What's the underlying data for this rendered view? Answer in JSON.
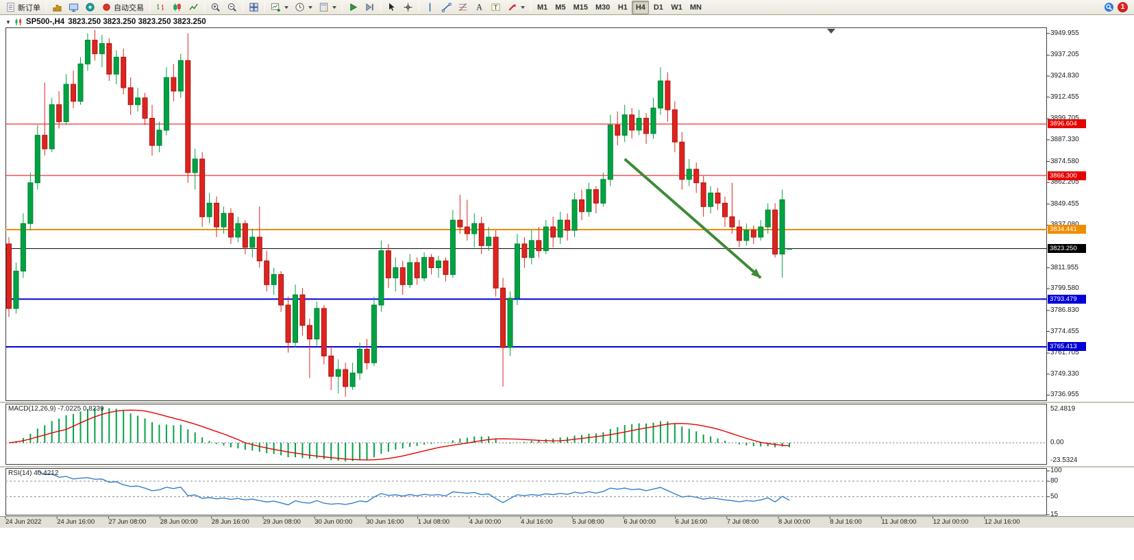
{
  "toolbar": {
    "new_order_label": "新订单",
    "autotrading_label": "自动交易",
    "timeframes": [
      "M1",
      "M5",
      "M15",
      "M30",
      "H1",
      "H4",
      "D1",
      "W1",
      "MN"
    ],
    "active_timeframe": "H4",
    "notification_count": "1",
    "icon_glyphs": {
      "text_tool": "A",
      "label_tool": "T"
    },
    "icons": [
      "new-order-icon",
      "charts-grid-icon",
      "market-watch-icon",
      "data-window-icon",
      "autotrading-icon",
      "bar-chart-icon",
      "candlestick-chart-icon",
      "line-chart-icon",
      "zoom-in-icon",
      "zoom-out-icon",
      "tile-windows-icon",
      "new-chart-icon",
      "chart-period-icon",
      "template-icon",
      "auto-scroll-icon",
      "chart-shift-icon",
      "cursor-icon",
      "crosshair-icon",
      "vertical-line-icon",
      "trendline-icon",
      "fibonacci-icon",
      "text-label-icon",
      "text-box-icon",
      "arrows-icon",
      "community-search-icon",
      "notification-badge"
    ]
  },
  "chart": {
    "title_symbol": "SP500-,H4",
    "title_ohlc": "3823.250 3823.250 3823.250 3823.250"
  },
  "chart_data": {
    "type": "candlestick",
    "symbol": "SP500-",
    "timeframe": "H4",
    "current_bar": {
      "open": 3823.25,
      "high": 3823.25,
      "low": 3823.25,
      "close": 3823.25
    },
    "y_range": [
      3733.5,
      3953.5
    ],
    "price_axis_labels": [
      "3949.955",
      "3937.205",
      "3924.830",
      "3912.455",
      "3899.705",
      "3887.330",
      "3874.580",
      "3862.205",
      "3849.455",
      "3837.080",
      "3811.955",
      "3799.580",
      "3786.830",
      "3774.455",
      "3761.705",
      "3749.330",
      "3736.955"
    ],
    "hlines": [
      {
        "price": 3896.604,
        "label": "3896.604",
        "color": "#e60000",
        "width": 1
      },
      {
        "price": 3866.3,
        "label": "3866.300",
        "color": "#e60000",
        "width": 1
      },
      {
        "price": 3834.441,
        "label": "3834.441",
        "color": "#f08c00",
        "width": 2
      },
      {
        "price": 3823.25,
        "label": "3823.250",
        "color": "#000000",
        "width": 1,
        "role": "bid"
      },
      {
        "price": 3793.479,
        "label": "3793.479",
        "color": "#0000d6",
        "width": 2
      },
      {
        "price": 3765.413,
        "label": "3765.413",
        "color": "#0000d6",
        "width": 2
      }
    ],
    "trend_arrow": {
      "from": {
        "bar": 86,
        "price": 3876
      },
      "to": {
        "bar": 105,
        "price": 3806
      },
      "color": "#3d8b37"
    },
    "time_axis_labels": [
      "24 Jun 2022",
      "24 Jun 16:00",
      "27 Jun 08:00",
      "28 Jun 00:00",
      "28 Jun 16:00",
      "29 Jun 08:00",
      "30 Jun 00:00",
      "30 Jun 16:00",
      "1 Jul 08:00",
      "4 Jul 00:00",
      "4 Jul 16:00",
      "5 Jul 08:00",
      "6 Jul 00:00",
      "6 Jul 16:00",
      "7 Jul 08:00",
      "8 Jul 00:00",
      "8 Jul 16:00",
      "11 Jul 08:00",
      "12 Jul 00:00",
      "12 Jul 16:00"
    ],
    "candles": [
      [
        3826,
        3830,
        3783,
        3788
      ],
      [
        3788,
        3815,
        3785,
        3810
      ],
      [
        3810,
        3844,
        3806,
        3838
      ],
      [
        3838,
        3868,
        3834,
        3862
      ],
      [
        3862,
        3896,
        3858,
        3890
      ],
      [
        3890,
        3921,
        3878,
        3882
      ],
      [
        3882,
        3912,
        3880,
        3908
      ],
      [
        3908,
        3916,
        3894,
        3898
      ],
      [
        3898,
        3926,
        3896,
        3920
      ],
      [
        3920,
        3928,
        3906,
        3910
      ],
      [
        3910,
        3936,
        3908,
        3932
      ],
      [
        3932,
        3950,
        3928,
        3946
      ],
      [
        3946,
        3952,
        3934,
        3938
      ],
      [
        3938,
        3949,
        3930,
        3944
      ],
      [
        3944,
        3947,
        3922,
        3926
      ],
      [
        3926,
        3940,
        3920,
        3936
      ],
      [
        3936,
        3941,
        3914,
        3918
      ],
      [
        3918,
        3924,
        3902,
        3908
      ],
      [
        3908,
        3918,
        3904,
        3912
      ],
      [
        3912,
        3915,
        3896,
        3900
      ],
      [
        3900,
        3908,
        3878,
        3884
      ],
      [
        3884,
        3898,
        3880,
        3893
      ],
      [
        3893,
        3930,
        3890,
        3924
      ],
      [
        3924,
        3932,
        3910,
        3916
      ],
      [
        3916,
        3938,
        3912,
        3934
      ],
      [
        3934,
        3950,
        3862,
        3868
      ],
      [
        3868,
        3882,
        3858,
        3876
      ],
      [
        3876,
        3880,
        3836,
        3842
      ],
      [
        3842,
        3856,
        3838,
        3850
      ],
      [
        3850,
        3854,
        3830,
        3836
      ],
      [
        3836,
        3848,
        3832,
        3844
      ],
      [
        3844,
        3847,
        3826,
        3830
      ],
      [
        3830,
        3842,
        3827,
        3838
      ],
      [
        3838,
        3840,
        3820,
        3824
      ],
      [
        3824,
        3835,
        3818,
        3830
      ],
      [
        3830,
        3848,
        3812,
        3816
      ],
      [
        3816,
        3822,
        3798,
        3802
      ],
      [
        3802,
        3812,
        3796,
        3808
      ],
      [
        3808,
        3810,
        3786,
        3790
      ],
      [
        3790,
        3795,
        3762,
        3768
      ],
      [
        3768,
        3802,
        3765,
        3796
      ],
      [
        3796,
        3800,
        3772,
        3778
      ],
      [
        3778,
        3782,
        3747,
        3770
      ],
      [
        3770,
        3792,
        3766,
        3788
      ],
      [
        3788,
        3790,
        3755,
        3760
      ],
      [
        3760,
        3766,
        3740,
        3748
      ],
      [
        3748,
        3758,
        3738,
        3752
      ],
      [
        3752,
        3756,
        3736,
        3742
      ],
      [
        3742,
        3756,
        3740,
        3750
      ],
      [
        3750,
        3768,
        3746,
        3764
      ],
      [
        3764,
        3770,
        3752,
        3756
      ],
      [
        3756,
        3795,
        3754,
        3790
      ],
      [
        3790,
        3828,
        3786,
        3822
      ],
      [
        3822,
        3826,
        3800,
        3806
      ],
      [
        3806,
        3818,
        3798,
        3812
      ],
      [
        3812,
        3816,
        3796,
        3802
      ],
      [
        3802,
        3820,
        3800,
        3815
      ],
      [
        3815,
        3818,
        3802,
        3806
      ],
      [
        3806,
        3821,
        3804,
        3818
      ],
      [
        3818,
        3820,
        3808,
        3812
      ],
      [
        3812,
        3819,
        3806,
        3816
      ],
      [
        3816,
        3818,
        3804,
        3808
      ],
      [
        3808,
        3846,
        3806,
        3840
      ],
      [
        3840,
        3855,
        3832,
        3836
      ],
      [
        3836,
        3852,
        3828,
        3832
      ],
      [
        3832,
        3844,
        3824,
        3838
      ],
      [
        3838,
        3842,
        3820,
        3825
      ],
      [
        3825,
        3836,
        3822,
        3830
      ],
      [
        3830,
        3834,
        3795,
        3800
      ],
      [
        3800,
        3806,
        3742,
        3765
      ],
      [
        3765,
        3798,
        3760,
        3794
      ],
      [
        3794,
        3832,
        3790,
        3826
      ],
      [
        3826,
        3830,
        3812,
        3818
      ],
      [
        3818,
        3834,
        3814,
        3828
      ],
      [
        3828,
        3836,
        3818,
        3822
      ],
      [
        3822,
        3840,
        3820,
        3836
      ],
      [
        3836,
        3842,
        3824,
        3830
      ],
      [
        3830,
        3845,
        3826,
        3840
      ],
      [
        3840,
        3844,
        3828,
        3834
      ],
      [
        3834,
        3856,
        3830,
        3852
      ],
      [
        3852,
        3858,
        3840,
        3845
      ],
      [
        3845,
        3862,
        3842,
        3858
      ],
      [
        3858,
        3860,
        3844,
        3850
      ],
      [
        3850,
        3868,
        3848,
        3864
      ],
      [
        3864,
        3902,
        3860,
        3896
      ],
      [
        3896,
        3904,
        3884,
        3890
      ],
      [
        3890,
        3908,
        3886,
        3902
      ],
      [
        3902,
        3906,
        3888,
        3893
      ],
      [
        3893,
        3905,
        3890,
        3900
      ],
      [
        3900,
        3903,
        3885,
        3891
      ],
      [
        3891,
        3912,
        3888,
        3906
      ],
      [
        3906,
        3930,
        3902,
        3922
      ],
      [
        3922,
        3927,
        3898,
        3905
      ],
      [
        3905,
        3910,
        3880,
        3886
      ],
      [
        3886,
        3892,
        3858,
        3864
      ],
      [
        3864,
        3876,
        3860,
        3870
      ],
      [
        3870,
        3874,
        3856,
        3862
      ],
      [
        3862,
        3866,
        3842,
        3848
      ],
      [
        3848,
        3860,
        3844,
        3856
      ],
      [
        3856,
        3859,
        3846,
        3850
      ],
      [
        3850,
        3854,
        3836,
        3842
      ],
      [
        3842,
        3862,
        3832,
        3836
      ],
      [
        3836,
        3840,
        3824,
        3828
      ],
      [
        3828,
        3838,
        3825,
        3834
      ],
      [
        3834,
        3837,
        3826,
        3830
      ],
      [
        3830,
        3840,
        3828,
        3836
      ],
      [
        3836,
        3850,
        3832,
        3846
      ],
      [
        3846,
        3850,
        3818,
        3820
      ],
      [
        3820,
        3858,
        3806,
        3852
      ],
      [
        3823.25,
        3823.25,
        3823.25,
        3823.25
      ]
    ],
    "indicators": {
      "macd": {
        "label": "MACD(12,26,9) -7.0225 0.8239",
        "axis_labels": [
          "52.4819",
          "0.00",
          "-23.5324"
        ],
        "histogram_color": "#00a344",
        "signal_color": "#e60000"
      },
      "rsi": {
        "label": "RSI(14) 40.4212",
        "axis_labels": [
          "100",
          "80",
          "50",
          "15"
        ],
        "levels": [
          80,
          50
        ],
        "line_color": "#3380cc"
      }
    }
  }
}
